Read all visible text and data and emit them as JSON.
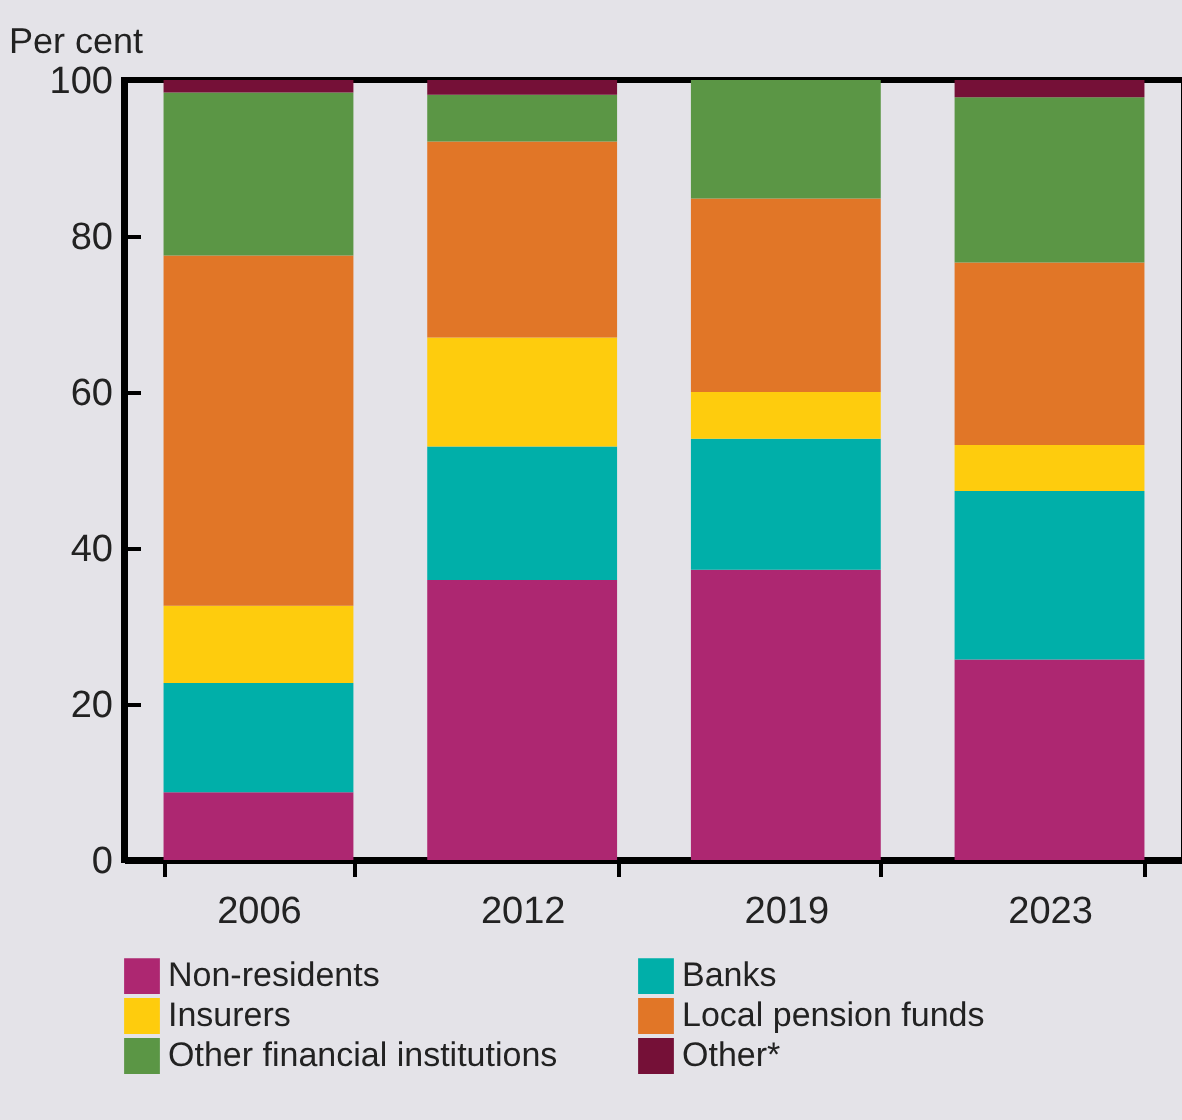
{
  "chart_data": {
    "type": "bar",
    "stacked": true,
    "ylabel": "Per cent",
    "categories": [
      "2006",
      "2012",
      "2019",
      "2023"
    ],
    "ylim": [
      0,
      100
    ],
    "yticks": [
      0,
      20,
      40,
      60,
      80,
      100
    ],
    "grid": false,
    "legend": "bottom",
    "series": [
      {
        "name": "Non-residents",
        "color": "#ad2771",
        "values": [
          8.7,
          35.9,
          37.2,
          25.7
        ]
      },
      {
        "name": "Banks",
        "color": "#00afa9",
        "values": [
          14.0,
          17.1,
          16.8,
          21.6
        ]
      },
      {
        "name": "Insurers",
        "color": "#fecc0d",
        "values": [
          9.9,
          14.0,
          6.0,
          5.9
        ]
      },
      {
        "name": "Local pension funds",
        "color": "#e17627",
        "values": [
          44.9,
          25.1,
          24.8,
          23.4
        ]
      },
      {
        "name": "Other financial institutions",
        "color": "#5b9645",
        "values": [
          20.9,
          6.0,
          15.2,
          21.2
        ]
      },
      {
        "name": "Other*",
        "color": "#751037",
        "values": [
          1.6,
          1.9,
          0,
          2.2
        ]
      }
    ]
  }
}
